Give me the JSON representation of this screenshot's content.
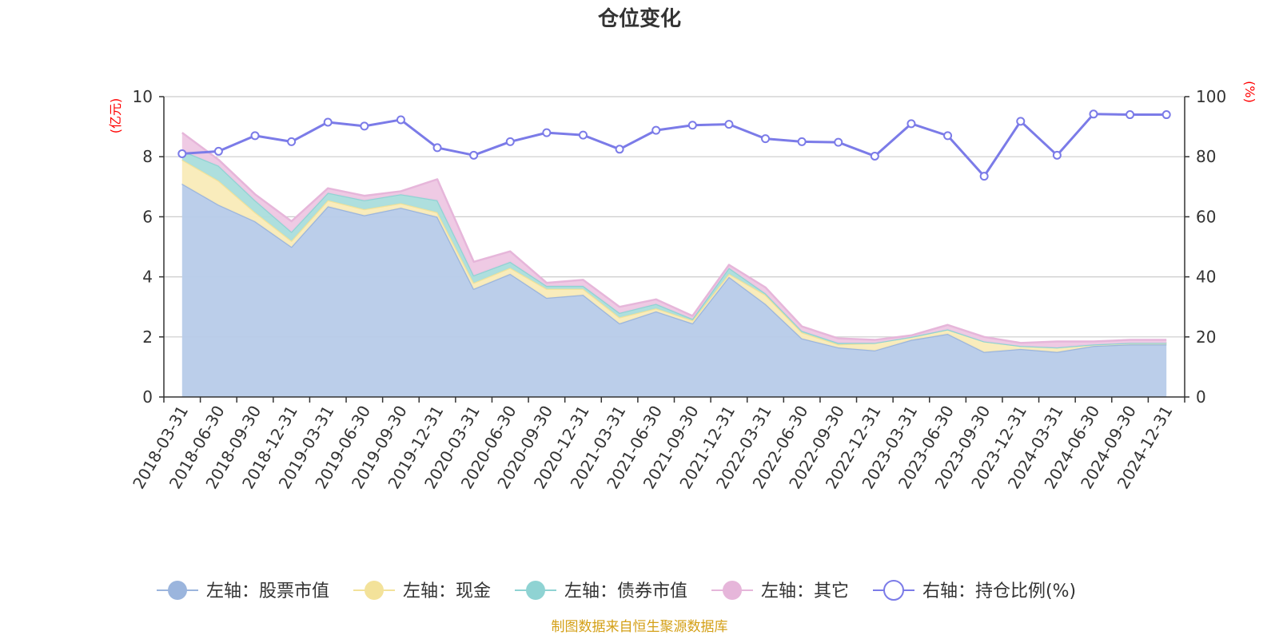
{
  "chart_data": {
    "type": "area",
    "title": "仓位变化",
    "left_unit": "(亿元)",
    "right_unit": "(%)",
    "source": "制图数据来自恒生聚源数据库",
    "categories": [
      "2018-03-31",
      "2018-06-30",
      "2018-09-30",
      "2018-12-31",
      "2019-03-31",
      "2019-06-30",
      "2019-09-30",
      "2019-12-31",
      "2020-03-31",
      "2020-06-30",
      "2020-09-30",
      "2020-12-31",
      "2021-03-31",
      "2021-06-30",
      "2021-09-30",
      "2021-12-31",
      "2022-03-31",
      "2022-06-30",
      "2022-09-30",
      "2022-12-31",
      "2023-03-31",
      "2023-06-30",
      "2023-09-30",
      "2023-12-31",
      "2024-03-31",
      "2024-06-30",
      "2024-09-30",
      "2024-12-31"
    ],
    "left_axis": {
      "min": 0,
      "max": 10,
      "ticks": [
        0,
        2,
        4,
        6,
        8,
        10
      ]
    },
    "right_axis": {
      "min": 0,
      "max": 100,
      "ticks": [
        0,
        20,
        40,
        60,
        80,
        100
      ]
    },
    "series": [
      {
        "name": "左轴：股票市值",
        "axis": "left",
        "kind": "area",
        "line": "#9bb5dd",
        "fill": "#b7cbe9",
        "values": [
          7.1,
          6.4,
          5.85,
          5.0,
          6.35,
          6.05,
          6.3,
          6.0,
          3.6,
          4.1,
          3.3,
          3.4,
          2.45,
          2.85,
          2.45,
          4.0,
          3.1,
          1.95,
          1.65,
          1.55,
          1.9,
          2.1,
          1.5,
          1.6,
          1.5,
          1.7,
          1.75,
          1.75
        ]
      },
      {
        "name": "左轴：现金",
        "axis": "left",
        "kind": "area",
        "line": "#f3e29a",
        "fill": "#f9ebb8",
        "values": [
          0.8,
          0.8,
          0.3,
          0.2,
          0.2,
          0.2,
          0.15,
          0.15,
          0.2,
          0.2,
          0.3,
          0.2,
          0.2,
          0.1,
          0.1,
          0.1,
          0.3,
          0.2,
          0.1,
          0.25,
          0.1,
          0.15,
          0.35,
          0.1,
          0.15,
          0.05,
          0.05,
          0.05
        ]
      },
      {
        "name": "左轴：债券市值",
        "axis": "left",
        "kind": "area",
        "line": "#8fd3d3",
        "fill": "#aadddc",
        "values": [
          0.3,
          0.5,
          0.4,
          0.3,
          0.25,
          0.3,
          0.3,
          0.4,
          0.25,
          0.2,
          0.1,
          0.1,
          0.15,
          0.15,
          0.05,
          0.2,
          0.05,
          0.05,
          0.05,
          0,
          0,
          0,
          0,
          0,
          0,
          0,
          0,
          0
        ]
      },
      {
        "name": "左轴：其它",
        "axis": "left",
        "kind": "area",
        "line": "#e6b6da",
        "fill": "#eec7e3",
        "values": [
          0.6,
          0.2,
          0.2,
          0.35,
          0.15,
          0.15,
          0.1,
          0.7,
          0.45,
          0.35,
          0.1,
          0.2,
          0.2,
          0.15,
          0.1,
          0.1,
          0.2,
          0.15,
          0.15,
          0.1,
          0.05,
          0.15,
          0.15,
          0.1,
          0.2,
          0.1,
          0.1,
          0.1
        ]
      },
      {
        "name": "右轴：持仓比例(%)",
        "axis": "right",
        "kind": "line",
        "line": "#7b7be8",
        "fill": "#ffffff",
        "values": [
          81,
          81.8,
          87,
          85,
          91.5,
          90.2,
          92.3,
          83,
          80.5,
          85,
          88,
          87.2,
          82.5,
          88.8,
          90.5,
          90.8,
          86,
          85,
          84.8,
          80.2,
          91,
          87,
          73.5,
          91.8,
          80.5,
          94.2,
          94,
          94
        ]
      }
    ]
  }
}
